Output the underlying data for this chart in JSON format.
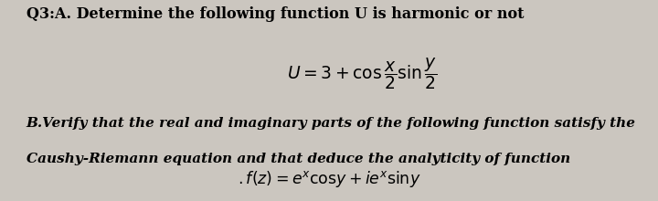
{
  "background_color": "#cbc6bf",
  "title_text": "Q3:A. Determine the following function U is harmonic or not",
  "formula_U": "$U = 3 + \\cos\\dfrac{x}{2}\\sin\\dfrac{y}{2}$",
  "part_B_line1": "B.Verify that the real and imaginary parts of the following function satisfy the",
  "part_B_line2": "Caushy-Riemann equation and that deduce the analyticity of function",
  "formula_fz": "$.f(z) = e^x\\mathrm{cos}y + ie^x\\mathrm{sin}y$",
  "title_fontsize": 11.5,
  "body_fontsize": 11.0,
  "formula_fontsize": 13.5,
  "fz_fontsize": 12.5
}
